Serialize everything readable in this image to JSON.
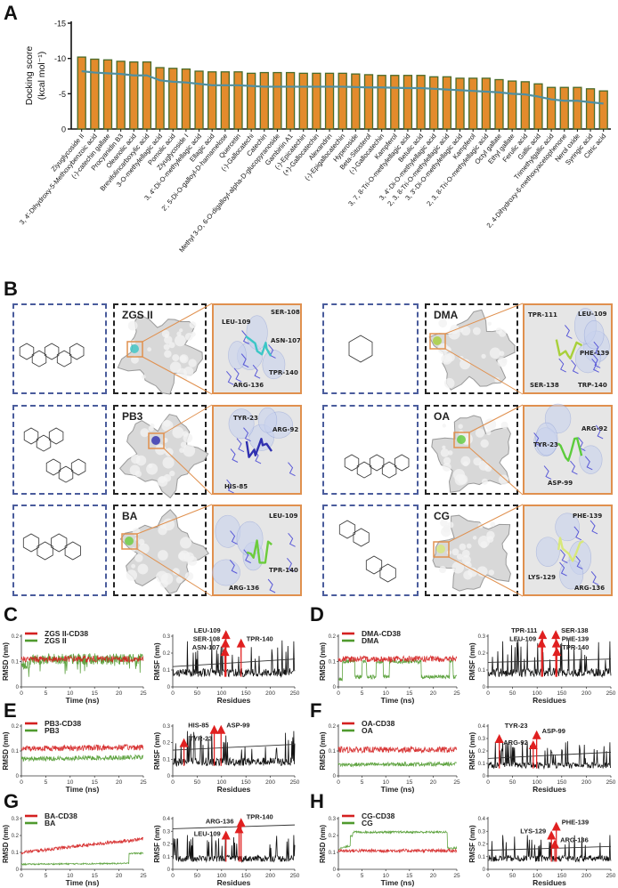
{
  "panels": {
    "A": "A",
    "B": "B",
    "C": "C",
    "D": "D",
    "E": "E",
    "F": "F",
    "G": "G",
    "H": "H"
  },
  "colors": {
    "bar_fill": "#e38b2c",
    "bar_stroke": "#4a6b2a",
    "line": "#4f8fa0",
    "complex": "#d42020",
    "ligand": "#4f9a2e",
    "highlight": "#e02020",
    "zoom_border": "#e0904e"
  },
  "chart_data": [
    {
      "type": "bar",
      "panel": "A",
      "ylabel": "Docking score",
      "ylabel_unit": "(kcal mol⁻¹)",
      "ylim": [
        0,
        -15
      ],
      "yticks": [
        "-15",
        "-10",
        "-5",
        "0"
      ],
      "ytick_values": [
        -15,
        -10,
        -5,
        0
      ],
      "categories": [
        "Ziyuglycoside II",
        "3, 4'-Dihydroxy-5-Methoxybenzoic acid",
        "(-)-catechin gallate",
        "Procyanidin B3",
        "Oleanolic acid",
        "Brevifolincarboxylic acid",
        "3-O-methylellagic acid",
        "Pomolic acid",
        "Ziyuglycoside I",
        "3, 4'-Di-O-methylellagic acid",
        "Ellagic acid",
        "2', 5-Di-O-galloyl-D-hamamelose",
        "Quercetin",
        "(-)-Gallocatechi",
        "Catechin",
        "Methyl 3-O, 6-O-digalloyl-alpha-D-glucopyranoside",
        "Gambiriin A1",
        "(-)-Epicatechin",
        "(+)-Gallocatechin",
        "Alexandrin",
        "(-)-Epigallocatechin",
        "Hyperoside",
        "Beta-Sitosterol",
        "(-)-Gallocatechin",
        "Kampferol",
        "3, 7, 8-Tri-O-methylellagic acid",
        "Betulic acid",
        "3, 4'-Di-O-methylellagic acid",
        "2, 3, 8-Tri-O-methylellagic acid",
        "3, 3'-Di-O-methylellagic acid",
        "Kampferol",
        "2, 3, 8-Tri-O-methylellagic acid",
        "Octyl gallate",
        "Ethyl gallate",
        "Ferulic acid",
        "Gallic acid",
        "Trimethylgallic acid",
        "2, 4-Dihydroxy-6-methoxyacetophenone",
        "Nerol oxide",
        "Syringic acid",
        "Citric acid"
      ],
      "values": [
        -10.2,
        -9.9,
        -9.8,
        -9.6,
        -9.5,
        -9.5,
        -8.7,
        -8.6,
        -8.5,
        -8.2,
        -8.1,
        -8.1,
        -8.1,
        -7.9,
        -8.0,
        -8.0,
        -8.0,
        -7.9,
        -7.9,
        -7.9,
        -7.9,
        -7.8,
        -7.7,
        -7.6,
        -7.6,
        -7.6,
        -7.6,
        -7.4,
        -7.4,
        -7.2,
        -7.2,
        -7.2,
        -7.0,
        -6.8,
        -6.7,
        -6.4,
        -5.9,
        -5.9,
        -5.9,
        -5.7,
        -5.4
      ],
      "trend_line": [
        -8.2,
        -8.0,
        -7.9,
        -7.8,
        -7.6,
        -7.6,
        -6.9,
        -6.7,
        -6.6,
        -6.4,
        -6.2,
        -6.2,
        -6.2,
        -6.1,
        -6.0,
        -6.0,
        -6.0,
        -6.0,
        -6.0,
        -6.0,
        -6.0,
        -5.95,
        -5.9,
        -5.9,
        -5.85,
        -5.8,
        -5.8,
        -5.7,
        -5.6,
        -5.5,
        -5.4,
        -5.3,
        -5.2,
        -5.0,
        -4.9,
        -4.6,
        -4.2,
        -4.0,
        -4.0,
        -3.8,
        -3.6
      ]
    },
    {
      "type": "line",
      "panel": "C",
      "chart": "RMSD",
      "xlabel": "Time (ns)",
      "ylabel": "RMSD (nm)",
      "xlim": [
        0,
        25
      ],
      "ylim": [
        0,
        0.2
      ],
      "xticks": [
        "0",
        "5",
        "10",
        "15",
        "20",
        "25"
      ],
      "yticks": [
        "0",
        "0.1",
        "0.2"
      ],
      "series": [
        {
          "name": "ZGS II-CD38",
          "color": "#d42020",
          "segments": [
            [
              0,
              25,
              0.11,
              0.11
            ]
          ],
          "noise": 0.012
        },
        {
          "name": "ZGS II",
          "color": "#4f9a2e",
          "segments": [
            [
              0,
              2,
              0.08,
              0.1
            ],
            [
              2,
              25,
              0.11,
              0.11
            ]
          ],
          "noise": 0.022
        }
      ]
    },
    {
      "type": "line",
      "panel": "C",
      "chart": "RMSF",
      "xlabel": "Residues",
      "ylabel": "RMSF (nm)",
      "xlim": [
        0,
        250
      ],
      "ylim": [
        0,
        0.3
      ],
      "xticks": [
        "0",
        "50",
        "100",
        "150",
        "200",
        "250"
      ],
      "yticks": [
        "0",
        "0.1",
        "0.2",
        "0.3"
      ],
      "trend": [
        0.12,
        0.165
      ],
      "markers": [
        {
          "label": "LEU-109",
          "residue": 109,
          "value": 0.31
        },
        {
          "label": "SER-108",
          "residue": 108,
          "value": 0.26
        },
        {
          "label": "ASN-107",
          "residue": 107,
          "value": 0.21
        },
        {
          "label": "TPR-140",
          "residue": 140,
          "value": 0.26
        }
      ]
    },
    {
      "type": "line",
      "panel": "D",
      "chart": "RMSD",
      "xlabel": "Time (ns)",
      "ylabel": "RMSD (nm)",
      "xlim": [
        0,
        25
      ],
      "ylim": [
        0,
        0.2
      ],
      "xticks": [
        "0",
        "5",
        "10",
        "15",
        "20",
        "25"
      ],
      "yticks": [
        "0",
        "0.1",
        "0.2"
      ],
      "series": [
        {
          "name": "DMA-CD38",
          "color": "#d42020",
          "segments": [
            [
              0,
              25,
              0.11,
              0.11
            ]
          ],
          "noise": 0.012
        },
        {
          "name": "DMA",
          "color": "#4f9a2e",
          "segments": [
            [
              0,
              0.8,
              0.03,
              0.03
            ],
            [
              0.8,
              3.5,
              0.1,
              0.1
            ],
            [
              3.5,
              5,
              0.04,
              0.04
            ],
            [
              5,
              6,
              0.1,
              0.1
            ],
            [
              6,
              8,
              0.04,
              0.04
            ],
            [
              8,
              9.5,
              0.1,
              0.1
            ],
            [
              9.5,
              10.8,
              0.04,
              0.04
            ],
            [
              10.8,
              17.5,
              0.1,
              0.1
            ],
            [
              17.5,
              23.5,
              0.04,
              0.04
            ],
            [
              23.5,
              24.2,
              0.1,
              0.1
            ],
            [
              24.2,
              25,
              0.04,
              0.04
            ]
          ],
          "noise": 0.008
        }
      ]
    },
    {
      "type": "line",
      "panel": "D",
      "chart": "RMSF",
      "xlabel": "Residues",
      "ylabel": "RMSF (nm)",
      "xlim": [
        0,
        250
      ],
      "ylim": [
        0,
        0.3
      ],
      "xticks": [
        "0",
        "50",
        "100",
        "150",
        "200",
        "250"
      ],
      "yticks": [
        "0",
        "0.1",
        "0.2",
        "0.3"
      ],
      "trend": [
        0.145,
        0.165
      ],
      "markers": [
        {
          "label": "TPR-111",
          "residue": 111,
          "value": 0.31
        },
        {
          "label": "LEU-109",
          "residue": 109,
          "value": 0.26
        },
        {
          "label": "SER-138",
          "residue": 138,
          "value": 0.31
        },
        {
          "label": "PHE-139",
          "residue": 139,
          "value": 0.26
        },
        {
          "label": "TPR-140",
          "residue": 140,
          "value": 0.21
        }
      ]
    },
    {
      "type": "line",
      "panel": "E",
      "chart": "RMSD",
      "xlabel": "Time (ns)",
      "ylabel": "RMSD (nm)",
      "xlim": [
        0,
        25
      ],
      "ylim": [
        0,
        0.2
      ],
      "xticks": [
        "0",
        "5",
        "10",
        "15",
        "20",
        "25"
      ],
      "yticks": [
        "0",
        "0.1",
        "0.2"
      ],
      "series": [
        {
          "name": "PB3-CD38",
          "color": "#d42020",
          "segments": [
            [
              0,
              25,
              0.11,
              0.115
            ]
          ],
          "noise": 0.012
        },
        {
          "name": "PB3",
          "color": "#4f9a2e",
          "segments": [
            [
              0,
              25,
              0.068,
              0.075
            ]
          ],
          "noise": 0.009
        }
      ]
    },
    {
      "type": "line",
      "panel": "E",
      "chart": "RMSF",
      "xlabel": "Residues",
      "ylabel": "RMSF (nm)",
      "xlim": [
        0,
        250
      ],
      "ylim": [
        0,
        0.3
      ],
      "xticks": [
        "0",
        "50",
        "100",
        "150",
        "200",
        "250"
      ],
      "yticks": [
        "0",
        "0.1",
        "0.2",
        "0.3"
      ],
      "trend": [
        0.155,
        0.19
      ],
      "markers": [
        {
          "label": "TYR-23",
          "residue": 23,
          "value": 0.2
        },
        {
          "label": "HIS-85",
          "residue": 85,
          "value": 0.28
        },
        {
          "label": "ASP-99",
          "residue": 99,
          "value": 0.28
        }
      ]
    },
    {
      "type": "line",
      "panel": "F",
      "chart": "RMSD",
      "xlabel": "Time (ns)",
      "ylabel": "RMSD (nm)",
      "xlim": [
        0,
        25
      ],
      "ylim": [
        0,
        0.2
      ],
      "xticks": [
        "0",
        "5",
        "10",
        "15",
        "20",
        "25"
      ],
      "yticks": [
        "0",
        "0.1",
        "0.2"
      ],
      "series": [
        {
          "name": "OA-CD38",
          "color": "#d42020",
          "segments": [
            [
              0,
              25,
              0.105,
              0.105
            ]
          ],
          "noise": 0.012
        },
        {
          "name": "OA",
          "color": "#4f9a2e",
          "segments": [
            [
              0,
              25,
              0.045,
              0.048
            ]
          ],
          "noise": 0.008
        }
      ]
    },
    {
      "type": "line",
      "panel": "F",
      "chart": "RMSF",
      "xlabel": "Residues",
      "ylabel": "RMSF (nm)",
      "xlim": [
        0,
        250
      ],
      "ylim": [
        0,
        0.4
      ],
      "xticks": [
        "0",
        "50",
        "100",
        "150",
        "200",
        "250"
      ],
      "yticks": [
        "0",
        "0.1",
        "0.2",
        "0.3",
        "0.4"
      ],
      "trend": [
        0.14,
        0.19
      ],
      "markers": [
        {
          "label": "TYR-23",
          "residue": 23,
          "value": 0.3
        },
        {
          "label": "ARG-92",
          "residue": 92,
          "value": 0.25
        },
        {
          "label": "ASP-99",
          "residue": 99,
          "value": 0.33
        }
      ]
    },
    {
      "type": "line",
      "panel": "G",
      "chart": "RMSD",
      "xlabel": "Time (ns)",
      "ylabel": "RMSD (nm)",
      "xlim": [
        0,
        25
      ],
      "ylim": [
        0,
        0.3
      ],
      "xticks": [
        "0",
        "5",
        "10",
        "15",
        "20",
        "25"
      ],
      "yticks": [
        "0",
        "0.1",
        "0.2",
        "0.3"
      ],
      "series": [
        {
          "name": "BA-CD38",
          "color": "#d42020",
          "segments": [
            [
              0,
              25,
              0.1,
              0.18
            ]
          ],
          "noise": 0.01
        },
        {
          "name": "BA",
          "color": "#4f9a2e",
          "segments": [
            [
              0,
              22,
              0.03,
              0.035
            ],
            [
              22,
              25,
              0.095,
              0.095
            ]
          ],
          "noise": 0.004
        }
      ]
    },
    {
      "type": "line",
      "panel": "G",
      "chart": "RMSF",
      "xlabel": "Residues",
      "ylabel": "RMSF (nm)",
      "xlim": [
        0,
        250
      ],
      "ylim": [
        0,
        0.4
      ],
      "xticks": [
        "0",
        "50",
        "100",
        "150",
        "200",
        "250"
      ],
      "yticks": [
        "0",
        "0.1",
        "0.2",
        "0.3",
        "0.4"
      ],
      "trend": [
        0.32,
        0.35
      ],
      "markers": [
        {
          "label": "LEU-109",
          "residue": 109,
          "value": 0.27
        },
        {
          "label": "ARG-136",
          "residue": 136,
          "value": 0.32
        },
        {
          "label": "TPR-140",
          "residue": 140,
          "value": 0.37
        }
      ]
    },
    {
      "type": "line",
      "panel": "H",
      "chart": "RMSD",
      "xlabel": "Time (ns)",
      "ylabel": "RMSD (nm)",
      "xlim": [
        0,
        25
      ],
      "ylim": [
        0,
        0.3
      ],
      "xticks": [
        "0",
        "5",
        "10",
        "15",
        "20",
        "25"
      ],
      "yticks": [
        "0",
        "0.1",
        "0.2",
        "0.3"
      ],
      "series": [
        {
          "name": "CG-CD38",
          "color": "#d42020",
          "segments": [
            [
              0,
              25,
              0.11,
              0.11
            ]
          ],
          "noise": 0.01
        },
        {
          "name": "CG",
          "color": "#4f9a2e",
          "segments": [
            [
              0,
              2.5,
              0.12,
              0.14
            ],
            [
              2.5,
              3,
              0.2,
              0.2
            ],
            [
              3,
              23,
              0.22,
              0.22
            ],
            [
              23,
              25,
              0.125,
              0.125
            ]
          ],
          "noise": 0.006
        }
      ]
    },
    {
      "type": "line",
      "panel": "H",
      "chart": "RMSF",
      "xlabel": "Residues",
      "ylabel": "RMSF (nm)",
      "xlim": [
        0,
        250
      ],
      "ylim": [
        0,
        0.4
      ],
      "xticks": [
        "0",
        "50",
        "100",
        "150",
        "200",
        "250"
      ],
      "yticks": [
        "0",
        "0.1",
        "0.2",
        "0.3",
        "0.4"
      ],
      "trend": [
        0.15,
        0.18
      ],
      "markers": [
        {
          "label": "LYS-129",
          "residue": 129,
          "value": 0.27
        },
        {
          "label": "ARG-136",
          "residue": 136,
          "value": 0.2
        },
        {
          "label": "PHE-139",
          "residue": 139,
          "value": 0.34
        }
      ]
    }
  ],
  "docking": [
    {
      "name": "ZGS II",
      "residues": [
        "LEU-109",
        "SER-108",
        "ASN-107",
        "TPR-140",
        "ARG-136"
      ],
      "ligand_color": "#3cc6c6"
    },
    {
      "name": "PB3",
      "residues": [
        "TYR-23",
        "ARG-92",
        "HIS-85"
      ],
      "ligand_color": "#3030b0"
    },
    {
      "name": "BA",
      "residues": [
        "LEU-109",
        "TPR-140",
        "ARG-136"
      ],
      "ligand_color": "#6ccc3c"
    },
    {
      "name": "DMA",
      "residues": [
        "TPR-111",
        "LEU-109",
        "PHE-139",
        "SER-138",
        "TRP-140"
      ],
      "ligand_color": "#a8d03a"
    },
    {
      "name": "OA",
      "residues": [
        "ARG-92",
        "TYR-23",
        "ASP-99"
      ],
      "ligand_color": "#5ccc3c"
    },
    {
      "name": "CG",
      "residues": [
        "PHE-139",
        "LYS-129",
        "ARG-136"
      ],
      "ligand_color": "#d8e87a"
    }
  ]
}
